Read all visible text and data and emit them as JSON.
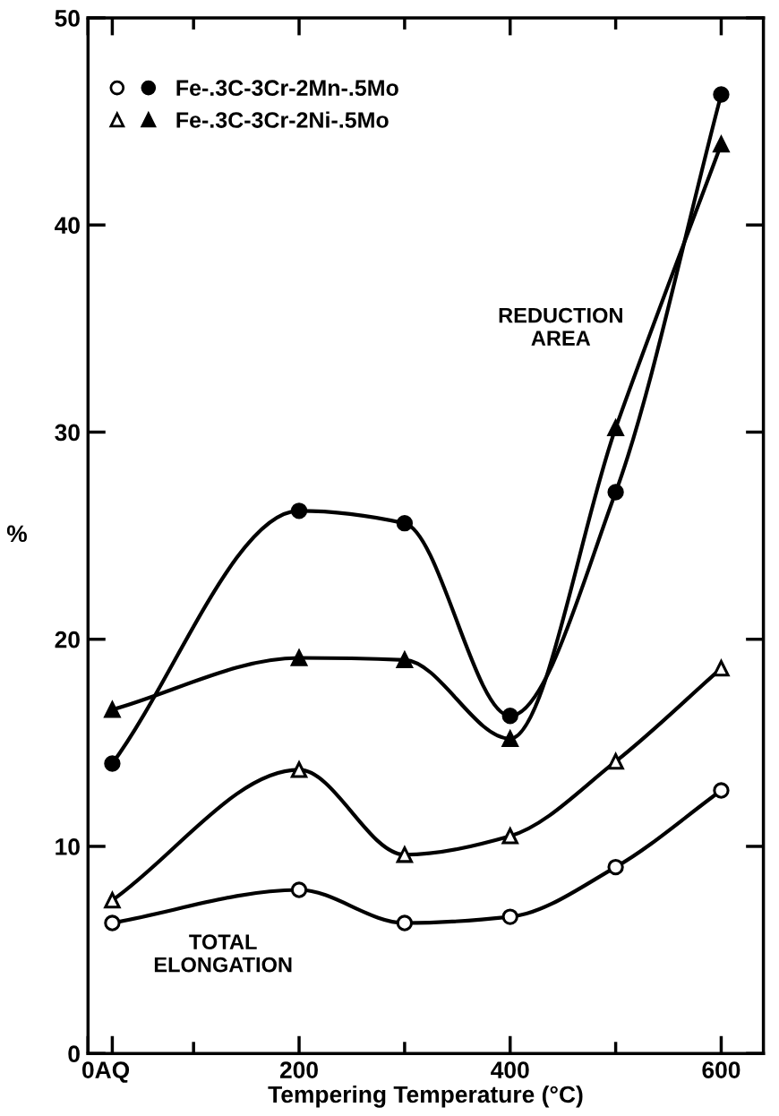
{
  "chart_data": {
    "type": "line",
    "xlabel": "Tempering Temperature (°C)",
    "ylabel": "%",
    "xlim": [
      0,
      640
    ],
    "ylim": [
      0,
      50
    ],
    "xticks": [
      0,
      {
        "value": 23,
        "label": "AQ"
      },
      {
        "value": 100,
        "label": null
      },
      200,
      {
        "value": 300,
        "label": null
      },
      400,
      {
        "value": 500,
        "label": null
      },
      600
    ],
    "yticks": [
      0,
      10,
      20,
      30,
      40,
      50
    ],
    "grid": false,
    "legend": "top left",
    "line_style": "solid",
    "series": [
      {
        "name": "Fe-.3C-3Cr-2Mn-.5Mo",
        "color": "#000000",
        "marker": "circle",
        "x": [
          23,
          200,
          300,
          400,
          500,
          600
        ],
        "values": [
          14.0,
          26.2,
          25.6,
          16.3,
          27.1,
          46.3
        ]
      },
      {
        "name": "Fe-.3C-3Cr-2Ni-.5Mo",
        "color": "#000000",
        "marker": "triangle",
        "x": [
          23,
          200,
          300,
          400,
          500,
          600
        ],
        "values": [
          16.6,
          19.1,
          19.0,
          15.2,
          30.2,
          43.9
        ]
      },
      {
        "color": "#ffffff",
        "marker": "circle",
        "x": [
          23,
          200,
          300,
          400,
          500,
          600
        ],
        "values": [
          6.3,
          7.9,
          6.3,
          6.6,
          9.0,
          12.7
        ]
      },
      {
        "color": "#ffffff",
        "marker": "triangle",
        "x": [
          23,
          200,
          300,
          400,
          500,
          600
        ],
        "values": [
          7.4,
          13.7,
          9.6,
          10.5,
          14.1,
          18.6
        ]
      }
    ],
    "annotations": [
      "REDUCTION\nAREA",
      "TOTAL\nELONGATION"
    ]
  }
}
